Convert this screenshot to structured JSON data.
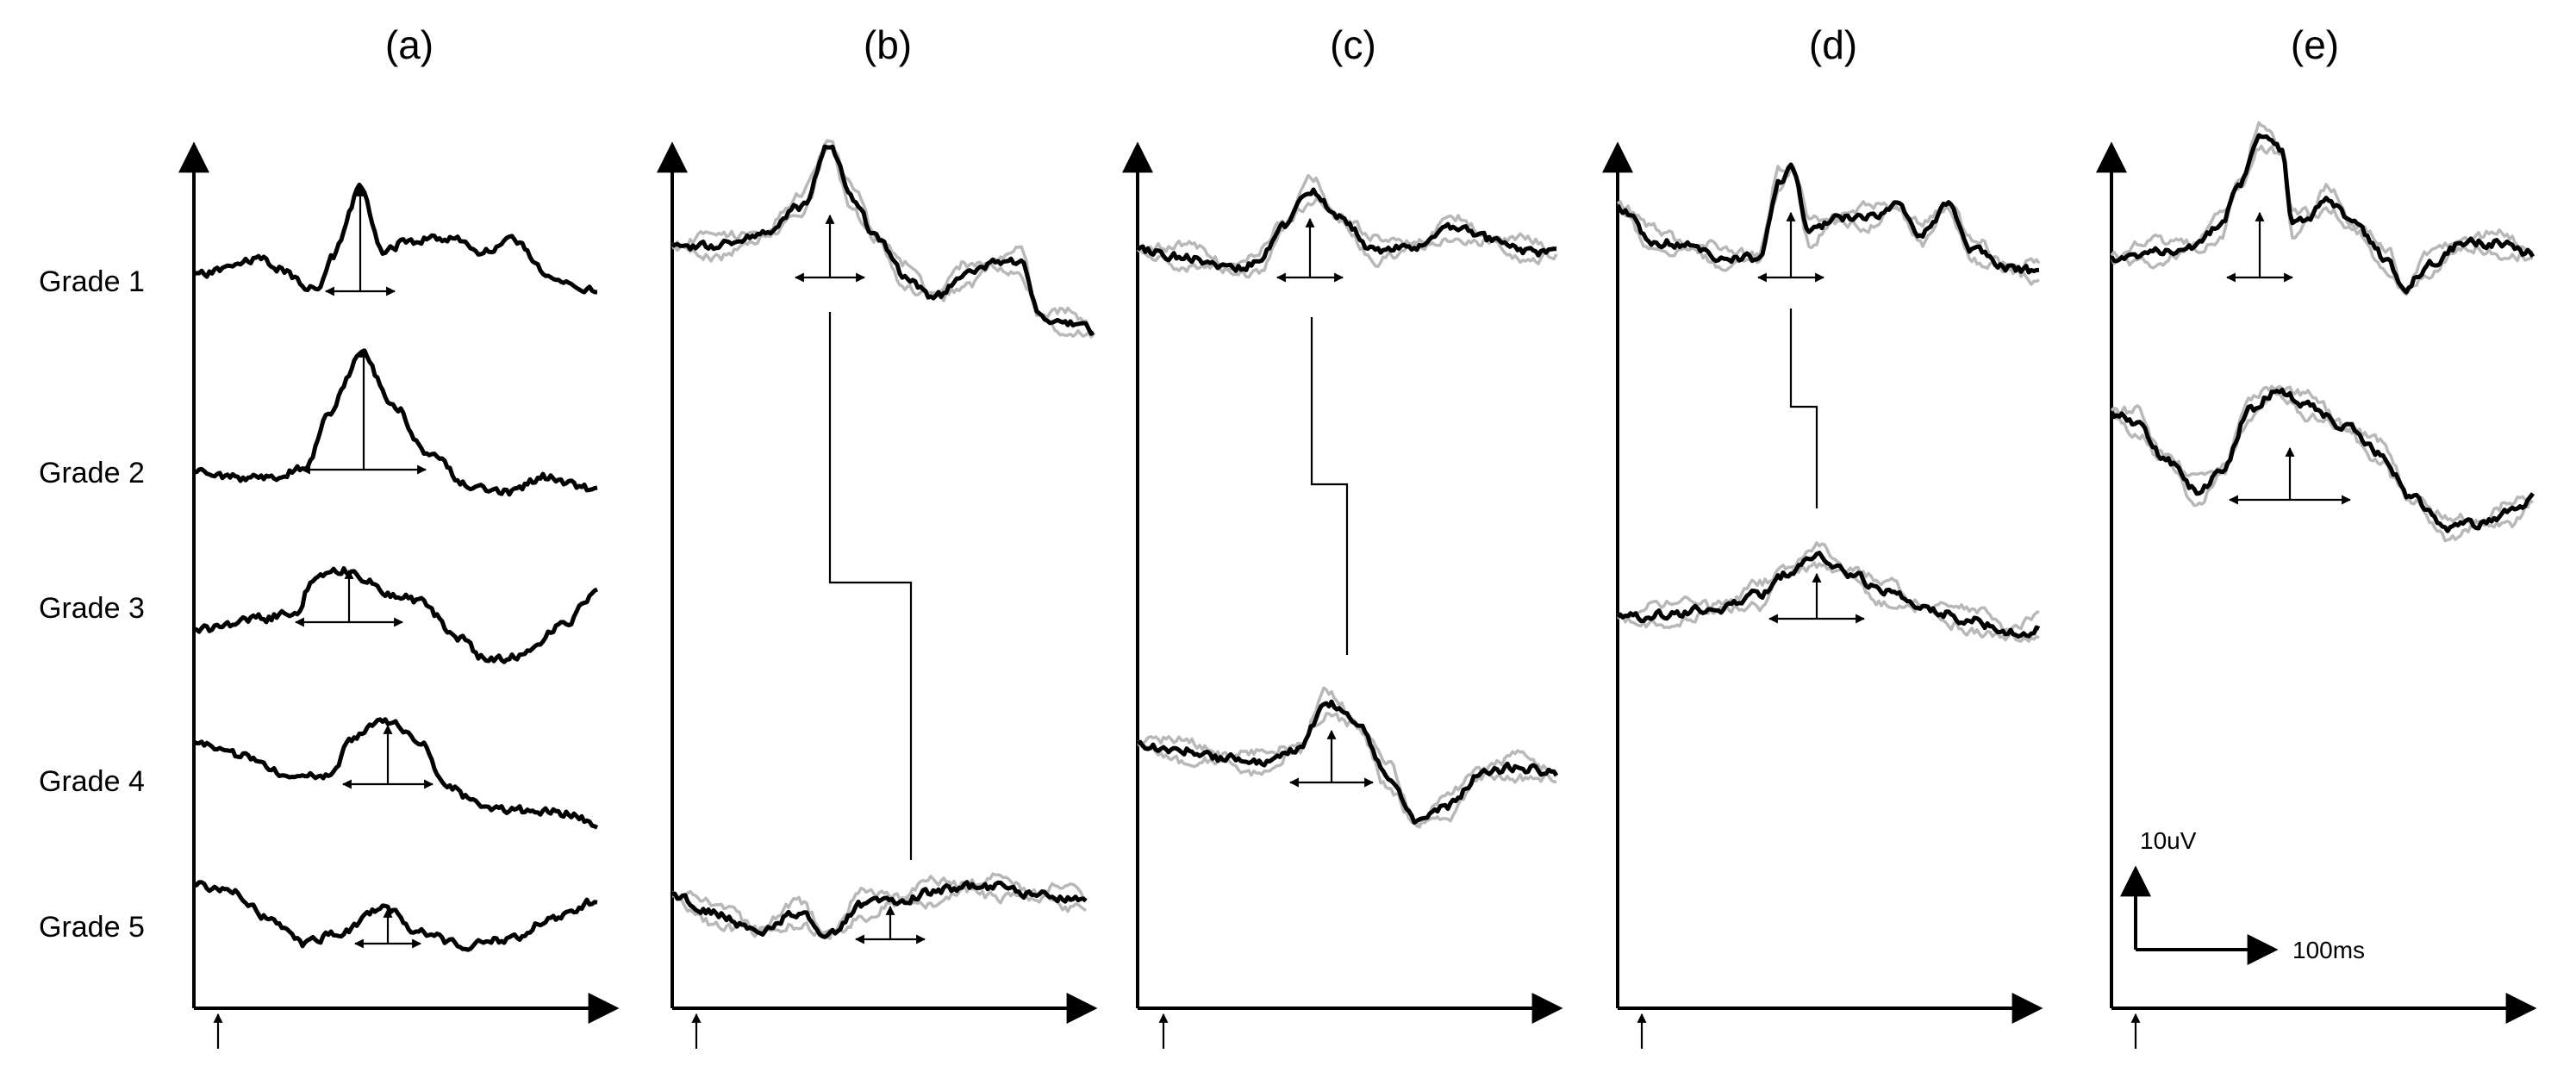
{
  "panels": [
    {
      "id": "a",
      "title": "(a)"
    },
    {
      "id": "b",
      "title": "(b)"
    },
    {
      "id": "c",
      "title": "(c)"
    },
    {
      "id": "d",
      "title": "(d)"
    },
    {
      "id": "e",
      "title": "(e)"
    }
  ],
  "grades": [
    "Grade 1",
    "Grade 2",
    "Grade 3",
    "Grade 4",
    "Grade 5"
  ],
  "scale_bar": {
    "amplitude_label": "10uV",
    "time_label": "100ms"
  }
}
